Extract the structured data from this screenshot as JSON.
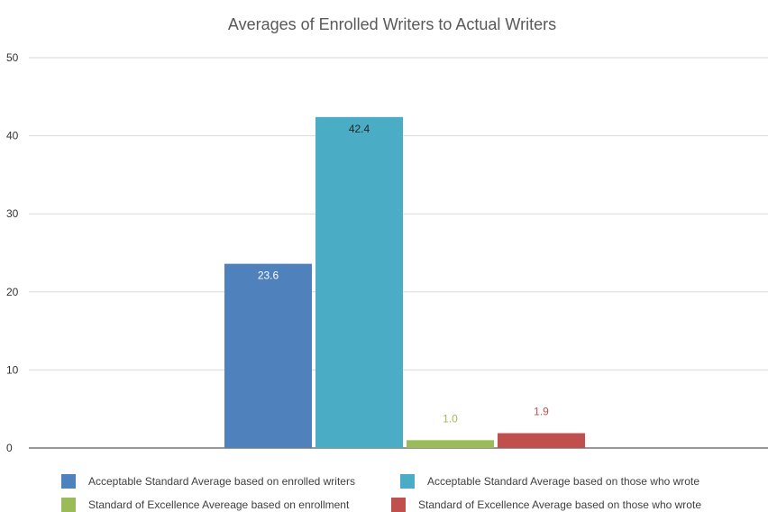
{
  "chart_data": {
    "type": "bar",
    "title": "Averages of Enrolled Writers to Actual Writers",
    "xlabel": "",
    "ylabel": "",
    "ylim": [
      0,
      50
    ],
    "yticks": [
      0,
      10,
      20,
      30,
      40,
      50
    ],
    "grid": true,
    "legend_position": "bottom",
    "categories": [
      ""
    ],
    "series": [
      {
        "name": "Acceptable Standard Average based on enrolled writers",
        "values": [
          23.6
        ],
        "label": "23.6",
        "color": "#4F81BD",
        "label_color": "#FFFFFF"
      },
      {
        "name": "Acceptable Standard Average based on those who wrote",
        "values": [
          42.4
        ],
        "label": "42.4",
        "color": "#4BACC6",
        "label_color": "#262626"
      },
      {
        "name": "Standard of Excellence Avereage based on enrollment",
        "values": [
          1.0
        ],
        "label": "1.0",
        "color": "#9BBB59",
        "label_color": "#9BBB59"
      },
      {
        "name": "Standard of Excellence Average based on those who wrote",
        "values": [
          1.9
        ],
        "label": "1.9",
        "color": "#C0504D",
        "label_color": "#C0504D"
      }
    ]
  }
}
